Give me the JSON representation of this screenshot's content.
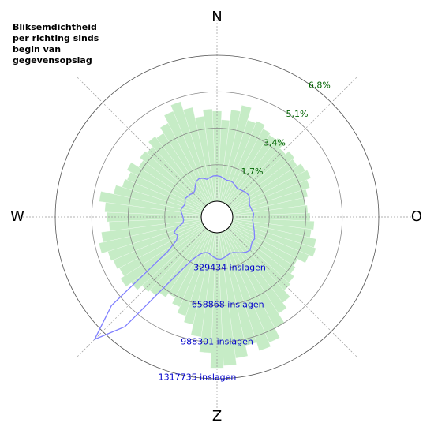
{
  "chart_data": {
    "type": "polar",
    "title": "Bliksemdichtheid per richting sinds begin van gegevensopslag",
    "directions": [
      "N",
      "O",
      "Z",
      "W"
    ],
    "theta": [
      0,
      5,
      10,
      15,
      20,
      25,
      30,
      35,
      40,
      45,
      50,
      55,
      60,
      65,
      70,
      75,
      80,
      85,
      90,
      95,
      100,
      105,
      110,
      115,
      120,
      125,
      130,
      135,
      140,
      145,
      150,
      155,
      160,
      165,
      170,
      175,
      180,
      185,
      190,
      195,
      200,
      205,
      210,
      215,
      220,
      225,
      230,
      235,
      240,
      245,
      250,
      255,
      260,
      265,
      270,
      275,
      280,
      285,
      290,
      295,
      300,
      305,
      310,
      315,
      320,
      325,
      330,
      335,
      340,
      345,
      350,
      355
    ],
    "series": [
      {
        "color": "#c6ecc6",
        "values": [
          4.2,
          3.8,
          4.3,
          4.6,
          4.0,
          4.1,
          3.9,
          3.8,
          3.9,
          3.6,
          3.8,
          3.7,
          3.9,
          4.0,
          3.8,
          3.6,
          3.4,
          3.5,
          3.6,
          3.8,
          3.7,
          4.0,
          4.1,
          3.9,
          3.5,
          3.6,
          3.8,
          3.9,
          4.3,
          4.6,
          5.1,
          5.6,
          5.8,
          5.4,
          5.9,
          6.2,
          6.3,
          5.6,
          4.9,
          4.4,
          4.1,
          3.8,
          3.5,
          3.7,
          3.9,
          4.0,
          4.3,
          4.6,
          4.4,
          4.5,
          4.6,
          4.9,
          4.7,
          4.3,
          4.4,
          4.5,
          4.8,
          4.2,
          3.9,
          3.8,
          4.0,
          3.6,
          3.8,
          3.7,
          4.0,
          3.9,
          4.2,
          4.6,
          4.9,
          4.5,
          4.0,
          4.3
        ]
      },
      {
        "color": "#8080ff",
        "axis": "r2",
        "values": [
          230000,
          225000,
          210000,
          200000,
          205000,
          200000,
          185000,
          175000,
          180000,
          190000,
          200000,
          205000,
          195000,
          180000,
          170000,
          175000,
          180000,
          190000,
          185000,
          180000,
          190000,
          200000,
          215000,
          230000,
          250000,
          245000,
          260000,
          280000,
          270000,
          250000,
          230000,
          210000,
          205000,
          215000,
          230000,
          240000,
          235000,
          220000,
          200000,
          190000,
          200000,
          230000,
          300000,
          500000,
          1150000,
          1420000,
          1100000,
          400000,
          280000,
          250000,
          270000,
          230000,
          170000,
          160000,
          165000,
          175000,
          190000,
          185000,
          170000,
          175000,
          190000,
          180000,
          175000,
          160000,
          170000,
          200000,
          230000,
          240000,
          230000,
          210000,
          220000,
          230000
        ]
      }
    ],
    "rlim": [
      0,
      6.8
    ],
    "rticks": [
      {
        "value": 1.7,
        "label": "1,7%"
      },
      {
        "value": 3.4,
        "label": "3,4%"
      },
      {
        "value": 5.1,
        "label": "5,1%"
      },
      {
        "value": 6.8,
        "label": "6,8%"
      }
    ],
    "r2lim": [
      0,
      1317735
    ],
    "r2ticks": [
      {
        "value": 329434,
        "label": "329434 inslagen"
      },
      {
        "value": 658868,
        "label": "658868 inslagen"
      },
      {
        "value": 988301,
        "label": "988301 inslagen"
      },
      {
        "value": 1317735,
        "label": "1317735 inslagen"
      }
    ]
  }
}
